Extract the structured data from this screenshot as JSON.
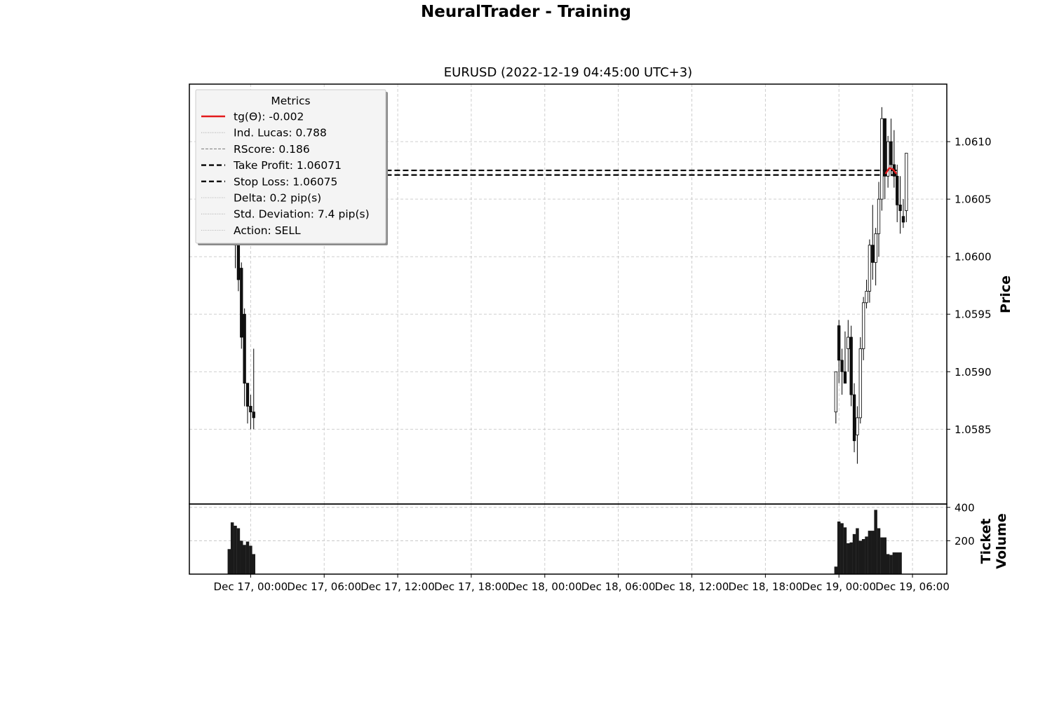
{
  "figure": {
    "title": "NeuralTrader - Training"
  },
  "legend": {
    "title": "Metrics",
    "entries": [
      {
        "label": "tg(Θ): -0.002",
        "style": "solid",
        "color": "#e31a1c"
      },
      {
        "label": "Ind. Lucas: 0.788",
        "style": "dotted",
        "color": "#9e9e9e"
      },
      {
        "label": "RScore: 0.186",
        "style": "dashed-thin",
        "color": "#7a7a7a"
      },
      {
        "label": "Take Profit: 1.06071",
        "style": "dashed-bold",
        "color": "#000000"
      },
      {
        "label": "Stop Loss: 1.06075",
        "style": "dashed-bold",
        "color": "#000000"
      },
      {
        "label": "Delta: 0.2 pip(s)",
        "style": "dotted",
        "color": "#9e9e9e"
      },
      {
        "label": "Std. Deviation: 7.4 pip(s)",
        "style": "dotted",
        "color": "#9e9e9e"
      },
      {
        "label": "Action: SELL",
        "style": "dotted",
        "color": "#9e9e9e"
      }
    ]
  },
  "chart_data": {
    "type": "candlestick",
    "title": "EURUSD (2022-12-19 04:45:00 UTC+3)",
    "xlabel": "",
    "ylabel": "Price",
    "volume_label": "Ticket\nVolume",
    "x_ticks": [
      "Dec 17, 00:00",
      "Dec 17, 06:00",
      "Dec 17, 12:00",
      "Dec 17, 18:00",
      "Dec 18, 00:00",
      "Dec 18, 06:00",
      "Dec 18, 12:00",
      "Dec 18, 18:00",
      "Dec 19, 00:00",
      "Dec 19, 06:00"
    ],
    "x_tick_hours": [
      0,
      6,
      12,
      18,
      24,
      30,
      36,
      42,
      48,
      54
    ],
    "xlim_hours": [
      -5,
      56.8
    ],
    "ylim": [
      1.05785,
      1.0615
    ],
    "y_ticks": [
      1.0585,
      1.059,
      1.0595,
      1.06,
      1.0605,
      1.061
    ],
    "y_tick_labels": [
      "1.0585",
      "1.0590",
      "1.0595",
      "1.0600",
      "1.0605",
      "1.0610"
    ],
    "volume_ylim": [
      0,
      420
    ],
    "volume_ticks": [
      200,
      400
    ],
    "grid": true,
    "legend_position": "upper-left",
    "candle_width_hours": 0.2,
    "candles": [
      {
        "t": -1.75,
        "o": 1.06045,
        "h": 1.06065,
        "l": 1.0602,
        "c": 1.0604
      },
      {
        "t": -1.5,
        "o": 1.0604,
        "h": 1.0605,
        "l": 1.0601,
        "c": 1.0602
      },
      {
        "t": -1.25,
        "o": 1.0602,
        "h": 1.06025,
        "l": 1.0599,
        "c": 1.0601
      },
      {
        "t": -1.0,
        "o": 1.0601,
        "h": 1.06015,
        "l": 1.0597,
        "c": 1.0598
      },
      {
        "t": -0.75,
        "o": 1.0599,
        "h": 1.05995,
        "l": 1.0592,
        "c": 1.0593
      },
      {
        "t": -0.5,
        "o": 1.0595,
        "h": 1.05955,
        "l": 1.0587,
        "c": 1.0589
      },
      {
        "t": -0.25,
        "o": 1.0589,
        "h": 1.0589,
        "l": 1.05855,
        "c": 1.0587
      },
      {
        "t": 0.0,
        "o": 1.0587,
        "h": 1.0588,
        "l": 1.0585,
        "c": 1.05865
      },
      {
        "t": 0.25,
        "o": 1.05865,
        "h": 1.0592,
        "l": 1.0585,
        "c": 1.0586
      },
      {
        "t": 47.75,
        "o": 1.05865,
        "h": 1.059,
        "l": 1.05855,
        "c": 1.059
      },
      {
        "t": 48.0,
        "o": 1.0594,
        "h": 1.05945,
        "l": 1.0589,
        "c": 1.0591
      },
      {
        "t": 48.25,
        "o": 1.0591,
        "h": 1.0592,
        "l": 1.0588,
        "c": 1.059
      },
      {
        "t": 48.5,
        "o": 1.059,
        "h": 1.05935,
        "l": 1.0589,
        "c": 1.0589
      },
      {
        "t": 48.75,
        "o": 1.0592,
        "h": 1.05945,
        "l": 1.059,
        "c": 1.0593
      },
      {
        "t": 49.0,
        "o": 1.0593,
        "h": 1.0594,
        "l": 1.0587,
        "c": 1.0588
      },
      {
        "t": 49.25,
        "o": 1.0588,
        "h": 1.0589,
        "l": 1.0583,
        "c": 1.0584
      },
      {
        "t": 49.5,
        "o": 1.05845,
        "h": 1.0587,
        "l": 1.0582,
        "c": 1.0586
      },
      {
        "t": 49.75,
        "o": 1.0586,
        "h": 1.0593,
        "l": 1.05855,
        "c": 1.0592
      },
      {
        "t": 50.0,
        "o": 1.0592,
        "h": 1.05965,
        "l": 1.0591,
        "c": 1.0596
      },
      {
        "t": 50.25,
        "o": 1.0596,
        "h": 1.0598,
        "l": 1.05955,
        "c": 1.0597
      },
      {
        "t": 50.5,
        "o": 1.0597,
        "h": 1.06015,
        "l": 1.0596,
        "c": 1.0601
      },
      {
        "t": 50.75,
        "o": 1.0601,
        "h": 1.06045,
        "l": 1.0598,
        "c": 1.05995
      },
      {
        "t": 51.0,
        "o": 1.05995,
        "h": 1.06025,
        "l": 1.05975,
        "c": 1.0602
      },
      {
        "t": 51.25,
        "o": 1.0602,
        "h": 1.06065,
        "l": 1.06,
        "c": 1.0605
      },
      {
        "t": 51.5,
        "o": 1.0605,
        "h": 1.0613,
        "l": 1.0604,
        "c": 1.0612
      },
      {
        "t": 51.75,
        "o": 1.0612,
        "h": 1.0612,
        "l": 1.0605,
        "c": 1.0607
      },
      {
        "t": 52.0,
        "o": 1.0607,
        "h": 1.06105,
        "l": 1.0606,
        "c": 1.061
      },
      {
        "t": 52.25,
        "o": 1.061,
        "h": 1.0612,
        "l": 1.0607,
        "c": 1.0608
      },
      {
        "t": 52.5,
        "o": 1.0608,
        "h": 1.0611,
        "l": 1.0606,
        "c": 1.0607
      },
      {
        "t": 52.75,
        "o": 1.0607,
        "h": 1.0608,
        "l": 1.0603,
        "c": 1.06045
      },
      {
        "t": 53.0,
        "o": 1.06045,
        "h": 1.0607,
        "l": 1.0602,
        "c": 1.0604
      },
      {
        "t": 53.25,
        "o": 1.06035,
        "h": 1.0605,
        "l": 1.06025,
        "c": 1.0603
      },
      {
        "t": 53.5,
        "o": 1.0604,
        "h": 1.0609,
        "l": 1.0603,
        "c": 1.0609
      }
    ],
    "volume_bars": [
      {
        "t": -1.75,
        "v": 150
      },
      {
        "t": -1.5,
        "v": 310
      },
      {
        "t": -1.25,
        "v": 290
      },
      {
        "t": -1.0,
        "v": 275
      },
      {
        "t": -0.75,
        "v": 200
      },
      {
        "t": -0.5,
        "v": 175
      },
      {
        "t": -0.25,
        "v": 195
      },
      {
        "t": 0.0,
        "v": 170
      },
      {
        "t": 0.25,
        "v": 120
      },
      {
        "t": 47.75,
        "v": 45
      },
      {
        "t": 48.0,
        "v": 315
      },
      {
        "t": 48.25,
        "v": 305
      },
      {
        "t": 48.5,
        "v": 280
      },
      {
        "t": 48.75,
        "v": 185
      },
      {
        "t": 49.0,
        "v": 190
      },
      {
        "t": 49.25,
        "v": 240
      },
      {
        "t": 49.5,
        "v": 275
      },
      {
        "t": 49.75,
        "v": 200
      },
      {
        "t": 50.0,
        "v": 210
      },
      {
        "t": 50.25,
        "v": 225
      },
      {
        "t": 50.5,
        "v": 260
      },
      {
        "t": 50.75,
        "v": 260
      },
      {
        "t": 51.0,
        "v": 385
      },
      {
        "t": 51.25,
        "v": 275
      },
      {
        "t": 51.5,
        "v": 220
      },
      {
        "t": 51.75,
        "v": 220
      },
      {
        "t": 52.0,
        "v": 120
      },
      {
        "t": 52.25,
        "v": 115
      },
      {
        "t": 52.5,
        "v": 130
      },
      {
        "t": 52.75,
        "v": 130
      },
      {
        "t": 53.0,
        "v": 130
      }
    ],
    "horizontal_lines": [
      {
        "name": "Take Profit",
        "value": 1.06071,
        "from_hour": -2,
        "to_hour": 52.9
      },
      {
        "name": "Stop Loss",
        "value": 1.06075,
        "from_hour": -2,
        "to_hour": 52.9
      }
    ],
    "trend_curve": [
      {
        "t": 51.8,
        "y": 1.06072
      },
      {
        "t": 52.1,
        "y": 1.06077
      },
      {
        "t": 52.4,
        "y": 1.06076
      },
      {
        "t": 52.7,
        "y": 1.06072
      }
    ]
  }
}
